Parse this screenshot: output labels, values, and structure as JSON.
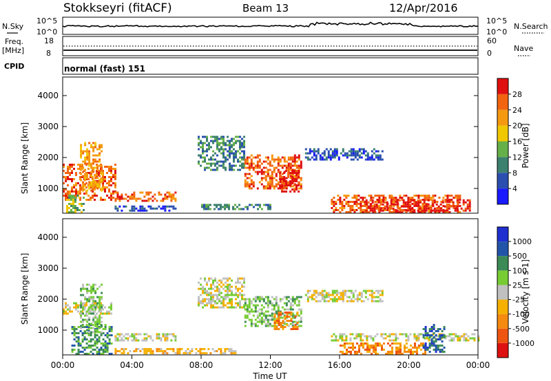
{
  "header": {
    "station": "Stokkseyri (fitACF)",
    "beam": "Beam 13",
    "date": "12/Apr/2016",
    "cpid_label": "CPID",
    "cpid_value": "normal (fast) 151"
  },
  "noise_panel": {
    "left_label": "N.Sky",
    "right_label": "N.Search",
    "tick_top": "10^5",
    "tick_bottom": "10^0"
  },
  "freq_panel": {
    "left_label_1": "Freq.",
    "left_label_2": "[MHz]",
    "right_label": "Nave",
    "left_ticks": [
      "18",
      "8"
    ],
    "right_ticks": [
      "60",
      "0"
    ]
  },
  "time_axis": {
    "label": "Time UT",
    "ticks": [
      "00:00",
      "04:00",
      "08:00",
      "12:00",
      "16:00",
      "20:00",
      "00:00"
    ]
  },
  "colors": {
    "power": [
      "#1a1aff",
      "#2a4fb0",
      "#3c8070",
      "#66b04a",
      "#f0c800",
      "#f59a10",
      "#f26410",
      "#e01010"
    ],
    "velocity": [
      "#dd1111",
      "#ee5511",
      "#f58a10",
      "#f5b000",
      "#c0c0c0",
      "#77cc33",
      "#3c8a55",
      "#2255aa",
      "#1f2fd0"
    ]
  },
  "chart_data": [
    {
      "type": "heatmap",
      "title": "Power [dB]",
      "ylabel": "Slant Range [km]",
      "xlabel": "",
      "x_range_hours": [
        0,
        24
      ],
      "ylim": [
        200,
        4600
      ],
      "y_ticks": [
        "4000",
        "3000",
        "2000",
        "1000"
      ],
      "colorbar_label": "Power [dB]",
      "colorbar_ticks": [
        "28",
        "24",
        "20",
        "16",
        "12",
        "8",
        "4"
      ],
      "bands": [
        {
          "t0": 0.0,
          "t1": 3.0,
          "r0": 600,
          "r1": 1800,
          "level": 6
        },
        {
          "t0": 1.0,
          "t1": 2.3,
          "r0": 900,
          "r1": 2500,
          "level": 5
        },
        {
          "t0": 0.2,
          "t1": 1.2,
          "r0": 250,
          "r1": 800,
          "level": 3
        },
        {
          "t0": 3.0,
          "t1": 6.5,
          "r0": 600,
          "r1": 900,
          "level": 6
        },
        {
          "t0": 3.0,
          "t1": 6.5,
          "r0": 250,
          "r1": 450,
          "level": 1
        },
        {
          "t0": 7.8,
          "t1": 10.5,
          "r0": 1600,
          "r1": 2700,
          "level": 2
        },
        {
          "t0": 10.5,
          "t1": 13.8,
          "r0": 1000,
          "r1": 2100,
          "level": 6
        },
        {
          "t0": 12.5,
          "t1": 13.6,
          "r0": 900,
          "r1": 1600,
          "level": 7
        },
        {
          "t0": 14.0,
          "t1": 18.5,
          "r0": 1900,
          "r1": 2300,
          "level": 1
        },
        {
          "t0": 15.5,
          "t1": 23.0,
          "r0": 250,
          "r1": 800,
          "level": 6
        },
        {
          "t0": 17.5,
          "t1": 23.5,
          "r0": 300,
          "r1": 650,
          "level": 7
        },
        {
          "t0": 8.0,
          "t1": 12.0,
          "r0": 350,
          "r1": 500,
          "level": 2
        }
      ]
    },
    {
      "type": "heatmap",
      "title": "Velocity [m s-1]",
      "ylabel": "Slant Range [km]",
      "xlabel": "Time UT",
      "x_range_hours": [
        0,
        24
      ],
      "ylim": [
        200,
        4600
      ],
      "y_ticks": [
        "4000",
        "3000",
        "2000",
        "1000"
      ],
      "colorbar_label": "Velocity [m s-1]",
      "colorbar_ticks": [
        "1000",
        "500",
        "100",
        "25",
        "-25",
        "-100",
        "-500",
        "-1000"
      ],
      "bands": [
        {
          "t0": 0.0,
          "t1": 2.8,
          "r0": 1500,
          "r1": 1900,
          "level": 4
        },
        {
          "t0": 0.5,
          "t1": 2.8,
          "r0": 250,
          "r1": 1200,
          "level": 6
        },
        {
          "t0": 1.0,
          "t1": 2.3,
          "r0": 900,
          "r1": 2500,
          "level": 5
        },
        {
          "t0": 3.0,
          "t1": 6.5,
          "r0": 650,
          "r1": 900,
          "level": 4
        },
        {
          "t0": 3.0,
          "t1": 10.0,
          "r0": 250,
          "r1": 420,
          "level": 3
        },
        {
          "t0": 7.8,
          "t1": 10.5,
          "r0": 1700,
          "r1": 2700,
          "level": 4
        },
        {
          "t0": 10.5,
          "t1": 13.8,
          "r0": 1100,
          "r1": 2100,
          "level": 5
        },
        {
          "t0": 12.2,
          "t1": 13.6,
          "r0": 1000,
          "r1": 1600,
          "level": 2
        },
        {
          "t0": 14.0,
          "t1": 18.5,
          "r0": 1900,
          "r1": 2300,
          "level": 4
        },
        {
          "t0": 16.0,
          "t1": 21.0,
          "r0": 250,
          "r1": 600,
          "level": 2
        },
        {
          "t0": 15.5,
          "t1": 24.0,
          "r0": 650,
          "r1": 900,
          "level": 4
        },
        {
          "t0": 20.8,
          "t1": 22.0,
          "r0": 300,
          "r1": 1200,
          "level": 7
        }
      ]
    }
  ]
}
